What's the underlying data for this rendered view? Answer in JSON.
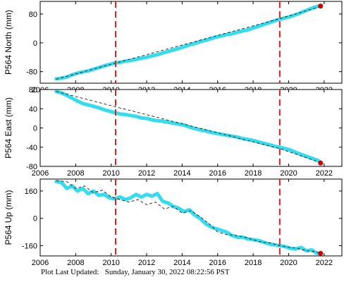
{
  "footer": {
    "label": "Plot Last Updated:",
    "value": "Sunday, January 30, 2022 08:22:56 PST"
  },
  "colors": {
    "data": "#33ddee",
    "model": "#000000",
    "marker": "#dd2222",
    "latest": "#cc0000"
  },
  "chart_data": [
    {
      "type": "line",
      "ylabel": "P564 North (mm)",
      "xlim": [
        2006,
        2023
      ],
      "ylim": [
        -112,
        115
      ],
      "xticks": [
        2006,
        2008,
        2010,
        2012,
        2014,
        2016,
        2018,
        2020,
        2022
      ],
      "yticks": [
        -80,
        0,
        80
      ],
      "vlines": [
        2010.25,
        2019.5
      ],
      "series": [
        {
          "role": "observed",
          "x": [
            2006.9,
            2007.2,
            2007.5,
            2007.8,
            2008.1,
            2008.4,
            2008.7,
            2009.0,
            2009.3,
            2009.6,
            2009.9,
            2010.2,
            2010.5,
            2010.8,
            2011.1,
            2011.4,
            2011.7,
            2012.0,
            2012.3,
            2012.6,
            2012.9,
            2013.2,
            2013.5,
            2013.8,
            2014.1,
            2014.4,
            2014.7,
            2015.0,
            2015.3,
            2015.6,
            2015.9,
            2016.2,
            2016.5,
            2016.8,
            2017.1,
            2017.4,
            2017.7,
            2018.0,
            2018.3,
            2018.6,
            2018.9,
            2019.2,
            2019.5,
            2019.8,
            2020.1,
            2020.4,
            2020.7,
            2021.0,
            2021.3,
            2021.6,
            2021.8
          ],
          "y": [
            -100,
            -98,
            -95,
            -89,
            -84,
            -81,
            -78,
            -73,
            -69,
            -64,
            -60,
            -56,
            -54,
            -51,
            -49,
            -46,
            -43,
            -40,
            -36,
            -33,
            -28,
            -24,
            -20,
            -16,
            -11,
            -6,
            -2,
            3,
            7,
            11,
            16,
            19,
            23,
            25,
            29,
            33,
            36,
            41,
            46,
            51,
            56,
            61,
            66,
            69,
            73,
            78,
            84,
            90,
            96,
            101,
            104
          ]
        },
        {
          "role": "model",
          "x": [
            2006.9,
            2010.25,
            2019.5,
            2021.8
          ],
          "y": [
            -101,
            -56,
            67,
            101
          ]
        }
      ],
      "latest": {
        "x": 2021.8,
        "y": 102
      }
    },
    {
      "type": "line",
      "ylabel": "P564 East (mm)",
      "xlim": [
        2006,
        2023
      ],
      "ylim": [
        -80,
        80
      ],
      "xticks": [
        2006,
        2008,
        2010,
        2012,
        2014,
        2016,
        2018,
        2020,
        2022
      ],
      "yticks": [
        -80,
        -40,
        0,
        40,
        80
      ],
      "vlines": [
        2010.25,
        2019.5
      ],
      "series": [
        {
          "role": "observed",
          "x": [
            2006.9,
            2007.2,
            2007.5,
            2007.8,
            2008.1,
            2008.4,
            2008.7,
            2009.0,
            2009.3,
            2009.6,
            2009.9,
            2010.2,
            2010.5,
            2010.8,
            2011.1,
            2011.4,
            2011.7,
            2012.0,
            2012.3,
            2012.6,
            2012.9,
            2013.2,
            2013.5,
            2013.8,
            2014.1,
            2014.4,
            2014.7,
            2015.0,
            2015.3,
            2015.6,
            2015.9,
            2016.2,
            2016.5,
            2016.8,
            2017.1,
            2017.4,
            2017.7,
            2018.0,
            2018.3,
            2018.6,
            2018.9,
            2019.2,
            2019.5,
            2019.8,
            2020.1,
            2020.4,
            2020.7,
            2021.0,
            2021.3,
            2021.6,
            2021.8
          ],
          "y": [
            76,
            73,
            68,
            62,
            56,
            51,
            48,
            45,
            42,
            38,
            35,
            32,
            29,
            28,
            26,
            24,
            21,
            20,
            17,
            15,
            14,
            12,
            10,
            8,
            6,
            2,
            -1,
            -4,
            -6,
            -9,
            -11,
            -13,
            -15,
            -17,
            -19,
            -22,
            -24,
            -26,
            -29,
            -32,
            -35,
            -38,
            -40,
            -43,
            -46,
            -51,
            -55,
            -59,
            -63,
            -67,
            -71
          ]
        },
        {
          "role": "model",
          "x": [
            2006.9,
            2010.25,
            2019.5,
            2021.8
          ],
          "y": [
            76,
            44,
            -43,
            -72
          ]
        }
      ],
      "latest": {
        "x": 2021.8,
        "y": -73
      }
    },
    {
      "type": "line",
      "ylabel": "P564 Up (mm)",
      "xlim": [
        2006,
        2023
      ],
      "ylim": [
        -220,
        230
      ],
      "xticks": [
        2006,
        2008,
        2010,
        2012,
        2014,
        2016,
        2018,
        2020,
        2022
      ],
      "yticks": [
        -160,
        0,
        160
      ],
      "vlines": [
        2010.25,
        2019.5
      ],
      "series": [
        {
          "role": "observed",
          "x": [
            2006.9,
            2007.2,
            2007.5,
            2007.8,
            2008.1,
            2008.4,
            2008.7,
            2009.0,
            2009.3,
            2009.6,
            2009.9,
            2010.2,
            2010.5,
            2010.8,
            2011.1,
            2011.4,
            2011.7,
            2012.0,
            2012.3,
            2012.6,
            2012.9,
            2013.2,
            2013.5,
            2013.8,
            2014.1,
            2014.4,
            2014.7,
            2015.0,
            2015.3,
            2015.6,
            2015.9,
            2016.2,
            2016.5,
            2016.8,
            2017.1,
            2017.4,
            2017.7,
            2018.0,
            2018.3,
            2018.6,
            2018.9,
            2019.2,
            2019.5,
            2019.8,
            2020.1,
            2020.4,
            2020.7,
            2021.0,
            2021.3,
            2021.6,
            2021.8
          ],
          "y": [
            215,
            210,
            175,
            190,
            160,
            175,
            145,
            160,
            135,
            140,
            120,
            115,
            125,
            110,
            120,
            140,
            125,
            140,
            130,
            145,
            100,
            90,
            70,
            60,
            40,
            50,
            20,
            0,
            -30,
            -50,
            -60,
            -70,
            -80,
            -100,
            -110,
            -110,
            -120,
            -125,
            -130,
            -140,
            -150,
            -155,
            -160,
            -165,
            -175,
            -180,
            -170,
            -190,
            -185,
            -205,
            -205
          ]
        },
        {
          "role": "model",
          "x": [
            2006.9,
            2007.5,
            2008.0,
            2008.5,
            2009.0,
            2009.5,
            2010.0,
            2010.5,
            2011.0,
            2011.5,
            2012.0,
            2012.5,
            2013.0,
            2013.5,
            2014.0,
            2014.5,
            2015.0,
            2015.5,
            2016.0,
            2016.5,
            2017.0,
            2017.5,
            2018.0,
            2018.5,
            2019.0,
            2019.5,
            2020.0,
            2020.5,
            2021.0,
            2021.5,
            2021.8
          ],
          "y": [
            220,
            215,
            175,
            190,
            150,
            165,
            125,
            110,
            95,
            110,
            80,
            95,
            55,
            70,
            30,
            45,
            10,
            -30,
            -80,
            -95,
            -100,
            -110,
            -125,
            -140,
            -145,
            -160,
            -170,
            -175,
            -190,
            -195,
            -205
          ]
        }
      ],
      "latest": {
        "x": 2021.8,
        "y": -205
      }
    }
  ]
}
